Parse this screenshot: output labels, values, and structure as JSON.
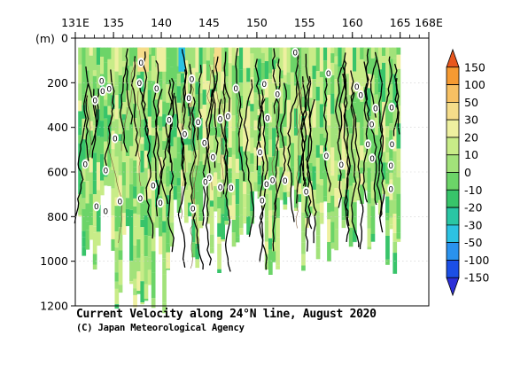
{
  "chart_data": {
    "type": "heatmap",
    "title": "Current Velocity along 24°N line, August 2020",
    "credit": "(C) Japan Meteorological Agency",
    "xlabel": "",
    "ylabel": "(m)",
    "x_ticks": [
      {
        "value": 131,
        "label": "131E"
      },
      {
        "value": 135,
        "label": "135"
      },
      {
        "value": 140,
        "label": "140"
      },
      {
        "value": 145,
        "label": "145"
      },
      {
        "value": 150,
        "label": "150"
      },
      {
        "value": 155,
        "label": "155"
      },
      {
        "value": 160,
        "label": "160"
      },
      {
        "value": 165,
        "label": "165"
      },
      {
        "value": 168,
        "label": "168E"
      }
    ],
    "xlim": [
      131,
      168
    ],
    "y_ticks": [
      {
        "value": 0,
        "label": "0"
      },
      {
        "value": 200,
        "label": "200"
      },
      {
        "value": 400,
        "label": "400"
      },
      {
        "value": 600,
        "label": "600"
      },
      {
        "value": 800,
        "label": "800"
      },
      {
        "value": 1000,
        "label": "1000"
      },
      {
        "value": 1200,
        "label": "1200"
      }
    ],
    "ylim": [
      0,
      1200
    ],
    "y_inverted": true,
    "contour_label": "0",
    "colorbar": {
      "levels": [
        "150",
        "100",
        "50",
        "30",
        "20",
        "10",
        "0",
        "-10",
        "-20",
        "-30",
        "-50",
        "-100",
        "-150"
      ],
      "colors": [
        "#e8571e",
        "#f59a32",
        "#f7c063",
        "#f5dc8a",
        "#eef0a0",
        "#c8ec88",
        "#a2e27a",
        "#6cd468",
        "#38c46a",
        "#2ac6a4",
        "#2cc2e2",
        "#2a92ee",
        "#1b4fe6",
        "#2b2ed8"
      ]
    }
  }
}
